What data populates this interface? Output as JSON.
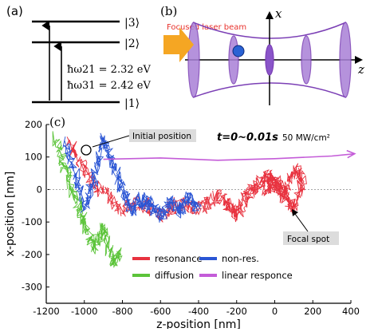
{
  "panel_a": {
    "label": "(a)",
    "levels": [
      "|3⟩",
      "|2⟩",
      "|1⟩"
    ],
    "eq1": "ħω21 = 2.32 eV",
    "eq2": "ħω31 = 2.42 eV"
  },
  "panel_b": {
    "label": "(b)",
    "beam_label": "Focused laser beam",
    "axis_x": "x",
    "axis_z": "z",
    "colors": {
      "beam_label": "#e8322d",
      "arrow": "#f5a623",
      "disk": "#a97fd6",
      "particle": "#2a62d4"
    }
  },
  "panel_c": {
    "label": "(c)",
    "time_label": "t=0~0.01s",
    "power_label": "50 MW/cm²",
    "initial_callout": "Initial position",
    "focal_callout": "Focal spot",
    "chart_data": {
      "type": "line",
      "xlabel": "z-position [nm]",
      "ylabel": "x-position [nm]",
      "xlim": [
        -1200,
        400
      ],
      "ylim": [
        -350,
        200
      ],
      "xticks": [
        -1200,
        -1000,
        -800,
        -600,
        -400,
        -200,
        0,
        200,
        400
      ],
      "yticks": [
        200,
        100,
        0,
        -100,
        -200,
        -300
      ],
      "series": [
        {
          "name": "resonance",
          "color": "#e8323f",
          "x": [
            -1080,
            -1000,
            -900,
            -800,
            -700,
            -600,
            -500,
            -400,
            -300,
            -250,
            -200,
            -150,
            -100,
            -50,
            0,
            50,
            100,
            150,
            100,
            50,
            0,
            -50
          ],
          "y": [
            150,
            60,
            -10,
            -60,
            -40,
            -80,
            -40,
            -60,
            -20,
            -40,
            -80,
            -20,
            10,
            40,
            30,
            -20,
            60,
            40,
            -60,
            -10,
            20,
            0
          ]
        },
        {
          "name": "non-res.",
          "color": "#2a55d4",
          "x": [
            -1100,
            -1050,
            -1000,
            -950,
            -900,
            -850,
            -800,
            -750,
            -700,
            -650,
            -600,
            -550,
            -500,
            -450,
            -400
          ],
          "y": [
            140,
            60,
            -60,
            30,
            150,
            80,
            0,
            -70,
            -30,
            -50,
            -80,
            -40,
            -70,
            -20,
            -60
          ]
        },
        {
          "name": "diffusion",
          "color": "#5cc43a",
          "x": [
            -1150,
            -1100,
            -1050,
            -1000,
            -950,
            -900,
            -850,
            -820
          ],
          "y": [
            160,
            60,
            -20,
            -100,
            -180,
            -120,
            -220,
            -200
          ]
        },
        {
          "name": "linear responce",
          "color": "#c45cd8",
          "x": [
            -900,
            -600,
            -300,
            0,
            300,
            420
          ],
          "y": [
            93,
            97,
            90,
            95,
            103,
            110
          ]
        }
      ],
      "legend_placement": "bottom-right",
      "reference_line_y": 0
    }
  }
}
